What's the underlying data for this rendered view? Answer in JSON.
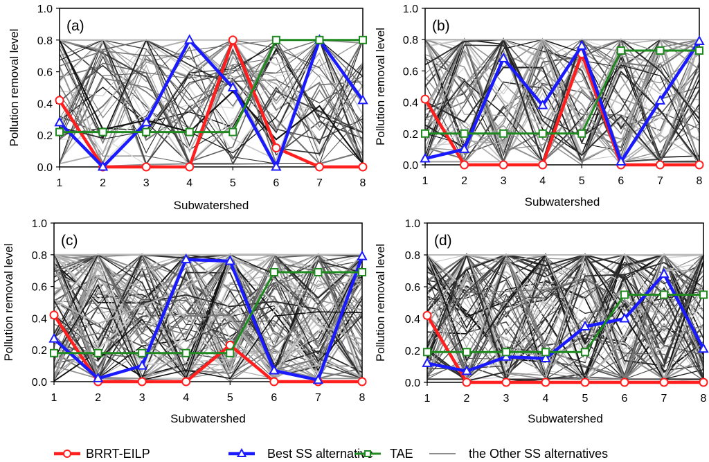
{
  "legend": {
    "items": [
      {
        "label": "BRRT-EILP",
        "color": "#ff1f1f",
        "marker": "circle"
      },
      {
        "label": "Best SS alternative",
        "color": "#1a1aff",
        "marker": "triangle"
      },
      {
        "label": "TAE",
        "color": "#1f8a1f",
        "marker": "square"
      },
      {
        "label": "the Other SS alternatives",
        "color": "#8c8c8c",
        "marker": "none"
      }
    ]
  },
  "chart_data": [
    {
      "type": "line",
      "panel_label": "(a)",
      "xlabel": "Subwatershed",
      "ylabel": "Pollution removal level",
      "x": [
        1,
        2,
        3,
        4,
        5,
        6,
        7,
        8
      ],
      "ylim": [
        0,
        1.0
      ],
      "yticks": [
        "0.0",
        "0.2",
        "0.4",
        "0.6",
        "0.8",
        "1.0"
      ],
      "series": [
        {
          "name": "BRRT-EILP",
          "values": [
            0.42,
            0.0,
            0.0,
            0.0,
            0.8,
            0.12,
            0.0,
            0.0
          ]
        },
        {
          "name": "Best SS alternative",
          "values": [
            0.28,
            0.0,
            0.28,
            0.8,
            0.5,
            0.0,
            0.8,
            0.42
          ]
        },
        {
          "name": "TAE",
          "values": [
            0.22,
            0.22,
            0.22,
            0.22,
            0.22,
            0.8,
            0.8,
            0.8
          ]
        }
      ],
      "background_lines": "the Other SS alternatives"
    },
    {
      "type": "line",
      "panel_label": "(b)",
      "xlabel": "Subwatershed",
      "ylabel": "Pollution removal level",
      "x": [
        1,
        2,
        3,
        4,
        5,
        6,
        7,
        8
      ],
      "ylim": [
        0,
        1.0
      ],
      "yticks": [
        "0.0",
        "0.2",
        "0.4",
        "0.6",
        "0.8",
        "1.0"
      ],
      "series": [
        {
          "name": "BRRT-EILP",
          "values": [
            0.42,
            0.0,
            0.0,
            0.0,
            0.71,
            0.0,
            0.0,
            0.0
          ]
        },
        {
          "name": "Best SS alternative",
          "values": [
            0.04,
            0.1,
            0.68,
            0.38,
            0.76,
            0.02,
            0.41,
            0.79
          ]
        },
        {
          "name": "TAE",
          "values": [
            0.2,
            0.2,
            0.2,
            0.2,
            0.2,
            0.73,
            0.73,
            0.73
          ]
        }
      ],
      "background_lines": "the Other SS alternatives"
    },
    {
      "type": "line",
      "panel_label": "(c)",
      "xlabel": "Subwatershed",
      "ylabel": "Pollution removal level",
      "x": [
        1,
        2,
        3,
        4,
        5,
        6,
        7,
        8
      ],
      "ylim": [
        0,
        1.0
      ],
      "yticks": [
        "0.0",
        "0.2",
        "0.4",
        "0.6",
        "0.8",
        "1.0"
      ],
      "series": [
        {
          "name": "BRRT-EILP",
          "values": [
            0.42,
            0.0,
            0.0,
            0.0,
            0.23,
            0.0,
            0.0,
            0.0
          ]
        },
        {
          "name": "Best SS alternative",
          "values": [
            0.27,
            0.02,
            0.1,
            0.77,
            0.76,
            0.07,
            0.01,
            0.79
          ]
        },
        {
          "name": "TAE",
          "values": [
            0.18,
            0.18,
            0.18,
            0.18,
            0.18,
            0.69,
            0.69,
            0.69
          ]
        }
      ],
      "background_lines": "the Other SS alternatives"
    },
    {
      "type": "line",
      "panel_label": "(d)",
      "xlabel": "Subwatershed",
      "ylabel": "Pollution removal level",
      "x": [
        1,
        2,
        3,
        4,
        5,
        6,
        7,
        8
      ],
      "ylim": [
        0,
        1.0
      ],
      "yticks": [
        "0.0",
        "0.2",
        "0.4",
        "0.6",
        "0.8",
        "1.0"
      ],
      "series": [
        {
          "name": "BRRT-EILP",
          "values": [
            0.42,
            0.0,
            0.0,
            0.0,
            0.0,
            0.0,
            0.0,
            0.0
          ]
        },
        {
          "name": "Best SS alternative",
          "values": [
            0.12,
            0.07,
            0.16,
            0.15,
            0.35,
            0.4,
            0.68,
            0.21
          ]
        },
        {
          "name": "TAE",
          "values": [
            0.19,
            0.19,
            0.19,
            0.19,
            0.19,
            0.55,
            0.55,
            0.55
          ]
        }
      ],
      "background_lines": "the Other SS alternatives"
    }
  ]
}
